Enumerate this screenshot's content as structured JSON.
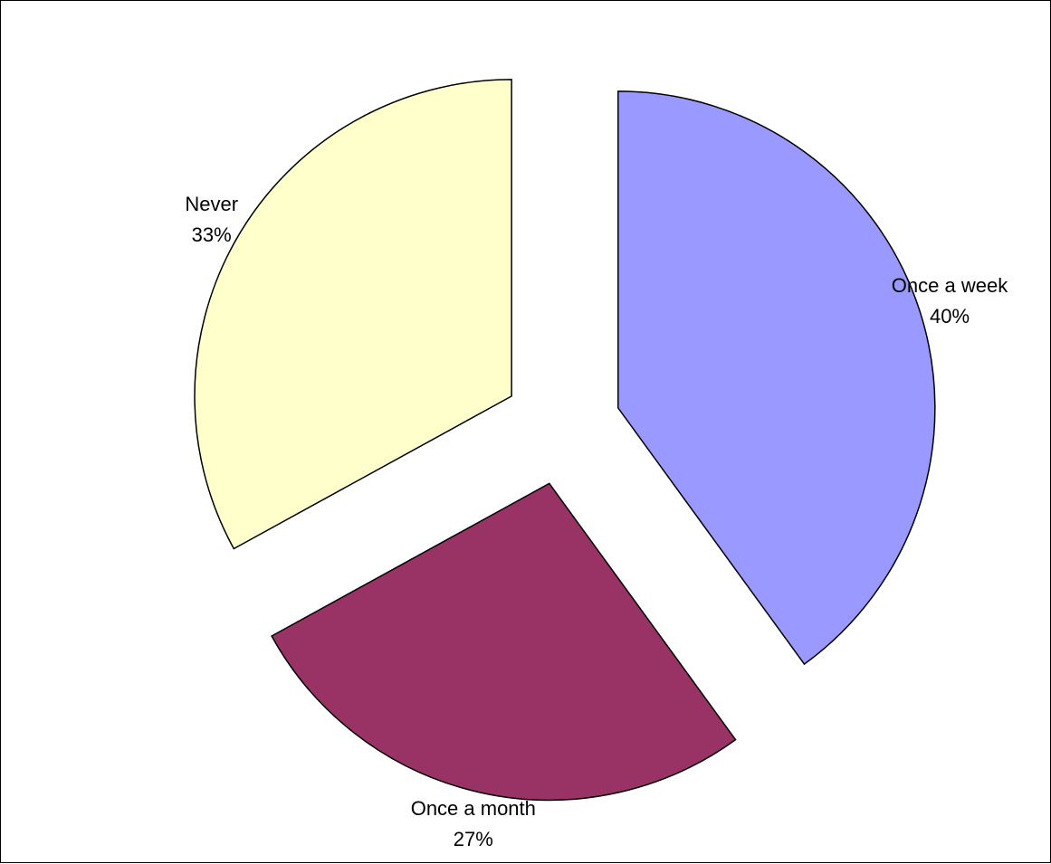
{
  "chart_data": {
    "type": "pie",
    "title": "",
    "exploded": true,
    "start_angle_deg": 0,
    "direction": "clockwise",
    "slices": [
      {
        "label": "Once a week",
        "value": 40,
        "value_label": "40%",
        "color": "#9999FF"
      },
      {
        "label": "Once a month",
        "value": 27,
        "value_label": "27%",
        "color": "#993366"
      },
      {
        "label": "Never",
        "value": 33,
        "value_label": "33%",
        "color": "#FFFFCC"
      }
    ]
  }
}
